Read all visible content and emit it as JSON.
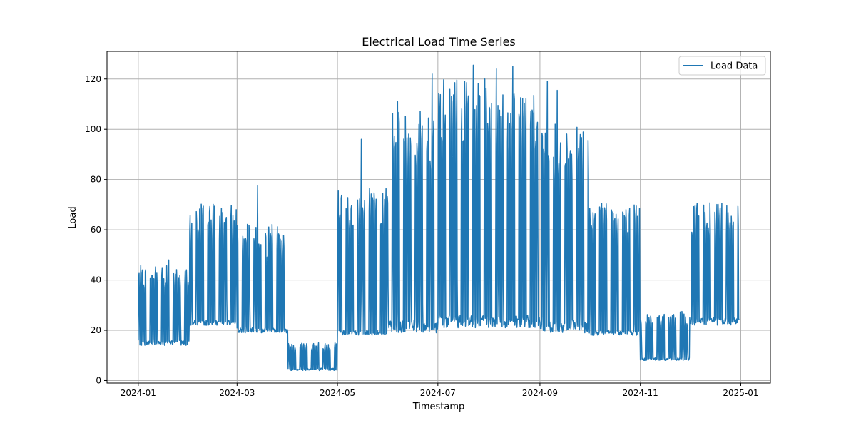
{
  "chart_data": {
    "type": "line",
    "title": "Electrical Load Time Series",
    "xlabel": "Timestamp",
    "ylabel": "Load",
    "x_axis_type": "date",
    "xlim": [
      "2023-12-13",
      "2025-01-19"
    ],
    "ylim": [
      -1,
      131
    ],
    "x_ticks": [
      "2024-01-01",
      "2024-03-01",
      "2024-05-01",
      "2024-07-01",
      "2024-09-01",
      "2024-11-01",
      "2025-01-01"
    ],
    "x_tick_labels": [
      "2024-01",
      "2024-03",
      "2024-05",
      "2024-07",
      "2024-09",
      "2024-11",
      "2025-01"
    ],
    "y_ticks": [
      0,
      20,
      40,
      60,
      80,
      100,
      120
    ],
    "y_tick_labels": [
      "0",
      "20",
      "40",
      "60",
      "80",
      "100",
      "120"
    ],
    "grid": true,
    "legend_position": "top-right",
    "series": [
      {
        "name": "Load Data",
        "color": "#1f77b4",
        "monthly_profile": [
          {
            "month": "2024-01",
            "base_low": 14,
            "base_high": 16,
            "peak": 45
          },
          {
            "month": "2024-02",
            "base_low": 22,
            "base_high": 24,
            "peak": 69
          },
          {
            "month": "2024-03",
            "base_low": 19,
            "base_high": 21,
            "peak": 61
          },
          {
            "month": "2024-04",
            "base_low": 4,
            "base_high": 5,
            "peak": 15
          },
          {
            "month": "2024-05",
            "base_low": 18,
            "base_high": 20,
            "peak": 75
          },
          {
            "month": "2024-06",
            "base_low": 19,
            "base_high": 24,
            "peak": 105
          },
          {
            "month": "2024-07",
            "base_low": 21,
            "base_high": 26,
            "peak": 118
          },
          {
            "month": "2024-08",
            "base_low": 21,
            "base_high": 26,
            "peak": 112
          },
          {
            "month": "2024-09",
            "base_low": 19,
            "base_high": 24,
            "peak": 100
          },
          {
            "month": "2024-10",
            "base_low": 18,
            "base_high": 20,
            "peak": 70
          },
          {
            "month": "2024-11",
            "base_low": 8,
            "base_high": 9,
            "peak": 27
          },
          {
            "month": "2024-12",
            "base_low": 22,
            "base_high": 25,
            "peak": 70
          }
        ],
        "peak_markers": [
          {
            "x": "2024-01-19",
            "y": 48
          },
          {
            "x": "2024-03-13",
            "y": 77.5
          },
          {
            "x": "2024-03-24",
            "y": 65.5
          },
          {
            "x": "2024-05-15",
            "y": 96
          },
          {
            "x": "2024-06-06",
            "y": 111
          },
          {
            "x": "2024-06-27",
            "y": 122
          },
          {
            "x": "2024-07-22",
            "y": 125.5
          },
          {
            "x": "2024-07-29",
            "y": 120
          },
          {
            "x": "2024-08-05",
            "y": 124
          },
          {
            "x": "2024-08-15",
            "y": 125
          },
          {
            "x": "2024-09-05",
            "y": 119
          },
          {
            "x": "2024-09-11",
            "y": 115.5
          },
          {
            "x": "2024-10-20",
            "y": 93
          },
          {
            "x": "2024-11-03",
            "y": 35.5
          },
          {
            "x": "2024-12-01",
            "y": 70.5
          }
        ],
        "start": "2024-01-01",
        "end": "2024-12-31",
        "start_value": 16,
        "end_value": 24
      }
    ]
  }
}
